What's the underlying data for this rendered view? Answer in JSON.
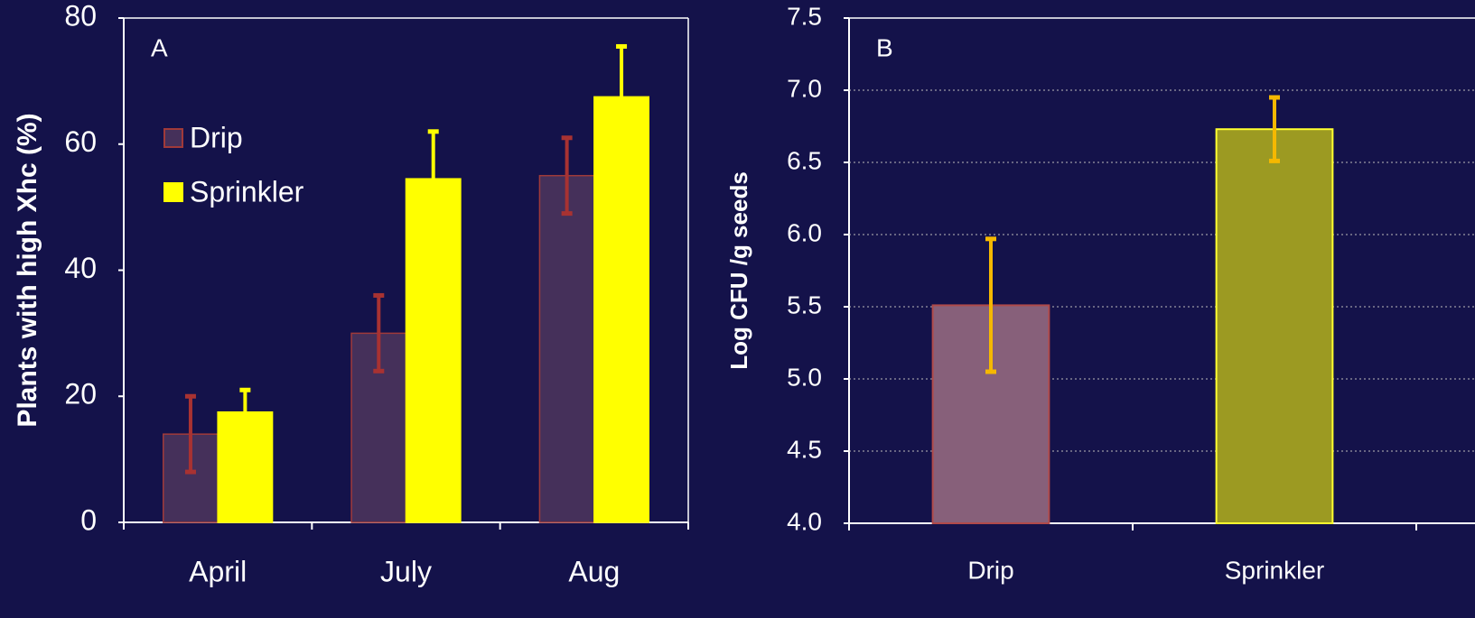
{
  "chart_data": [
    {
      "type": "bar",
      "panel_label": "A",
      "ylabel": "Plants with high Xhc (%)",
      "categories": [
        "April",
        "July",
        "Aug"
      ],
      "series": [
        {
          "name": "Drip",
          "color": "#45305a",
          "edge_color": "#a03a3a",
          "values": [
            14,
            30,
            55
          ],
          "errors": [
            6,
            6,
            6
          ],
          "error_color": "#a83232",
          "error_bars": "both"
        },
        {
          "name": "Sprinkler",
          "color": "#ffff00",
          "edge_color": "#ffff00",
          "values": [
            17.5,
            54.5,
            67.5
          ],
          "errors": [
            3.5,
            7.5,
            8
          ],
          "error_color": "#ffff00",
          "error_bars": "upper"
        }
      ],
      "ylim": [
        0,
        80
      ],
      "yticks": [
        0,
        20,
        40,
        60,
        80
      ],
      "grid": false,
      "legend": "upper left"
    },
    {
      "type": "bar",
      "panel_label": "B",
      "ylabel": "Log CFU /g seeds",
      "categories": [
        "Drip",
        "Sprinkler"
      ],
      "values": [
        5.51,
        6.73
      ],
      "errors": [
        0.46,
        0.22
      ],
      "colors": [
        "#87607a",
        "#9c9a22"
      ],
      "edge_colors": [
        "#b04a4a",
        "#ffff30"
      ],
      "error_color": "#f5b800",
      "ylim": [
        4.0,
        7.5
      ],
      "yticks": [
        {
          "value": 4.0,
          "label": "4.0"
        },
        4.5,
        {
          "value": 5.0,
          "label": "5.0"
        },
        5.5,
        {
          "value": 6.0,
          "label": "6.0"
        },
        6.5,
        {
          "value": 7.0,
          "label": "7.0"
        },
        7.5
      ],
      "grid": true
    }
  ]
}
